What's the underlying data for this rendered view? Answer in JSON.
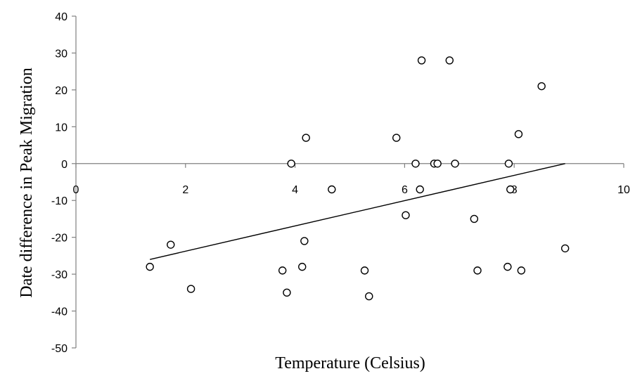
{
  "chart_data": {
    "type": "scatter",
    "xlabel": "Temperature (Celsius)",
    "ylabel": "Date difference in Peak Migration",
    "xlim": [
      0,
      10
    ],
    "ylim": [
      -50,
      40
    ],
    "x_ticks": [
      0,
      2,
      4,
      6,
      8,
      10
    ],
    "y_ticks": [
      40,
      30,
      20,
      10,
      0,
      -10,
      -20,
      -30,
      -40,
      -50
    ],
    "grid": false,
    "legend": "none",
    "points": [
      {
        "x": 1.35,
        "y": -28
      },
      {
        "x": 1.73,
        "y": -22
      },
      {
        "x": 2.1,
        "y": -34
      },
      {
        "x": 3.77,
        "y": -29
      },
      {
        "x": 3.85,
        "y": -35
      },
      {
        "x": 3.93,
        "y": 0
      },
      {
        "x": 4.13,
        "y": -28
      },
      {
        "x": 4.17,
        "y": -21
      },
      {
        "x": 4.2,
        "y": 7
      },
      {
        "x": 4.67,
        "y": -7
      },
      {
        "x": 5.27,
        "y": -29
      },
      {
        "x": 5.35,
        "y": -36
      },
      {
        "x": 5.85,
        "y": 7
      },
      {
        "x": 6.02,
        "y": -14
      },
      {
        "x": 6.2,
        "y": 0
      },
      {
        "x": 6.28,
        "y": -7
      },
      {
        "x": 6.31,
        "y": 28
      },
      {
        "x": 6.54,
        "y": 0
      },
      {
        "x": 6.6,
        "y": 0
      },
      {
        "x": 6.82,
        "y": 28
      },
      {
        "x": 6.92,
        "y": 0
      },
      {
        "x": 7.27,
        "y": -15
      },
      {
        "x": 7.33,
        "y": -29
      },
      {
        "x": 7.88,
        "y": -28
      },
      {
        "x": 7.9,
        "y": 0
      },
      {
        "x": 7.93,
        "y": -7
      },
      {
        "x": 8.08,
        "y": 8
      },
      {
        "x": 8.13,
        "y": -29
      },
      {
        "x": 8.5,
        "y": 21
      },
      {
        "x": 8.93,
        "y": -23
      }
    ],
    "trendline": {
      "x": [
        1.35,
        8.93
      ],
      "y": [
        -26,
        0
      ]
    }
  }
}
